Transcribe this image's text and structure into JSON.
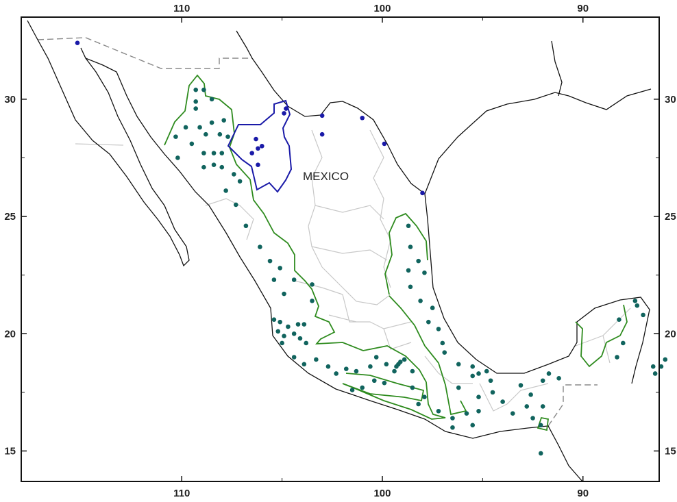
{
  "map": {
    "place_label": "MEXICO",
    "extent": {
      "lon_west": 118,
      "lon_east": 86.2,
      "lat_south": 13.7,
      "lat_north": 33.5
    },
    "lon_ticks": [
      {
        "value": 110,
        "label": "110"
      },
      {
        "value": 100,
        "label": "100"
      },
      {
        "value": 90,
        "label": "90"
      }
    ],
    "lat_ticks": [
      {
        "value": 30,
        "label": "30"
      },
      {
        "value": 25,
        "label": "25"
      },
      {
        "value": 20,
        "label": "20"
      },
      {
        "value": 15,
        "label": "15"
      }
    ],
    "colors": {
      "coastline": "#111111",
      "state_borders": "#c8c8c8",
      "international_border": "#888888",
      "region_outline_green": "#2e8b1e",
      "region_outline_blue": "#1a1aa8",
      "points_teal": "#11645e",
      "points_blue": "#1a1aa8"
    },
    "teal_points": [
      [
        109.3,
        30.4
      ],
      [
        109.3,
        29.9
      ],
      [
        109.3,
        29.6
      ],
      [
        108.9,
        30.4
      ],
      [
        108.5,
        30.0
      ],
      [
        109.8,
        28.8
      ],
      [
        109.1,
        28.8
      ],
      [
        108.5,
        29.0
      ],
      [
        107.9,
        29.1
      ],
      [
        110.3,
        28.4
      ],
      [
        109.5,
        28.1
      ],
      [
        108.8,
        28.5
      ],
      [
        108.1,
        28.5
      ],
      [
        107.7,
        28.4
      ],
      [
        110.2,
        27.5
      ],
      [
        108.9,
        27.7
      ],
      [
        108.4,
        27.7
      ],
      [
        108.0,
        27.7
      ],
      [
        108.9,
        27.1
      ],
      [
        108.4,
        27.2
      ],
      [
        107.4,
        26.8
      ],
      [
        107.1,
        26.5
      ],
      [
        108.0,
        27.1
      ],
      [
        107.8,
        26.1
      ],
      [
        107.3,
        25.5
      ],
      [
        106.8,
        24.6
      ],
      [
        106.1,
        23.7
      ],
      [
        105.6,
        23.1
      ],
      [
        105.1,
        22.8
      ],
      [
        104.4,
        22.3
      ],
      [
        105.4,
        22.3
      ],
      [
        104.9,
        21.7
      ],
      [
        103.5,
        22.1
      ],
      [
        103.5,
        21.4
      ],
      [
        105.4,
        20.6
      ],
      [
        105.1,
        20.5
      ],
      [
        104.7,
        20.3
      ],
      [
        104.2,
        20.4
      ],
      [
        103.9,
        20.4
      ],
      [
        105.2,
        20.1
      ],
      [
        104.9,
        19.9
      ],
      [
        104.4,
        20.0
      ],
      [
        104.1,
        19.8
      ],
      [
        103.8,
        19.6
      ],
      [
        105.0,
        19.6
      ],
      [
        104.4,
        19.0
      ],
      [
        103.9,
        18.7
      ],
      [
        103.3,
        18.9
      ],
      [
        102.7,
        18.6
      ],
      [
        102.3,
        18.3
      ],
      [
        101.8,
        18.5
      ],
      [
        101.3,
        18.4
      ],
      [
        100.6,
        18.6
      ],
      [
        100.3,
        19.0
      ],
      [
        99.8,
        18.7
      ],
      [
        99.2,
        18.7
      ],
      [
        99.1,
        18.8
      ],
      [
        99.3,
        18.6
      ],
      [
        99.4,
        18.4
      ],
      [
        98.9,
        18.9
      ],
      [
        98.5,
        18.4
      ],
      [
        100.4,
        18.0
      ],
      [
        99.9,
        17.9
      ],
      [
        101.0,
        17.7
      ],
      [
        101.5,
        17.6
      ],
      [
        98.5,
        17.7
      ],
      [
        97.9,
        17.3
      ],
      [
        98.2,
        17.0
      ],
      [
        97.2,
        16.7
      ],
      [
        96.5,
        16.4
      ],
      [
        95.8,
        16.6
      ],
      [
        95.5,
        16.1
      ],
      [
        96.5,
        16.0
      ],
      [
        95.2,
        16.7
      ],
      [
        98.7,
        24.6
      ],
      [
        98.6,
        23.7
      ],
      [
        98.2,
        23.1
      ],
      [
        98.7,
        22.7
      ],
      [
        97.9,
        22.6
      ],
      [
        98.6,
        22.0
      ],
      [
        98.1,
        21.4
      ],
      [
        97.5,
        21.1
      ],
      [
        97.7,
        20.5
      ],
      [
        97.2,
        20.2
      ],
      [
        97.0,
        19.6
      ],
      [
        96.9,
        19.2
      ],
      [
        96.2,
        18.7
      ],
      [
        95.5,
        18.6
      ],
      [
        95.2,
        18.3
      ],
      [
        94.8,
        18.4
      ],
      [
        95.5,
        18.2
      ],
      [
        94.6,
        18.0
      ],
      [
        96.2,
        17.7
      ],
      [
        95.2,
        17.3
      ],
      [
        94.5,
        17.5
      ],
      [
        94.0,
        17.1
      ],
      [
        93.5,
        16.6
      ],
      [
        92.8,
        16.9
      ],
      [
        92.5,
        16.4
      ],
      [
        92.1,
        16.1
      ],
      [
        93.1,
        17.8
      ],
      [
        92.6,
        17.4
      ],
      [
        92.0,
        16.9
      ],
      [
        91.7,
        18.3
      ],
      [
        91.2,
        18.1
      ],
      [
        92.0,
        18.0
      ],
      [
        92.1,
        14.9
      ],
      [
        88.2,
        20.6
      ],
      [
        87.3,
        21.2
      ],
      [
        87.0,
        20.8
      ],
      [
        87.4,
        21.4
      ],
      [
        88.0,
        19.6
      ],
      [
        86.5,
        18.6
      ],
      [
        86.4,
        18.3
      ],
      [
        86.1,
        18.6
      ],
      [
        85.9,
        18.9
      ],
      [
        88.3,
        19.0
      ]
    ],
    "blue_points": [
      [
        115.2,
        32.4
      ],
      [
        106.3,
        28.3
      ],
      [
        106.2,
        27.9
      ],
      [
        106.5,
        27.7
      ],
      [
        106.0,
        28.0
      ],
      [
        106.2,
        27.2
      ],
      [
        104.9,
        29.4
      ],
      [
        104.8,
        29.6
      ],
      [
        103.0,
        29.3
      ],
      [
        103.0,
        28.5
      ],
      [
        101.0,
        29.2
      ],
      [
        99.9,
        28.1
      ],
      [
        98.0,
        26.0
      ]
    ]
  }
}
